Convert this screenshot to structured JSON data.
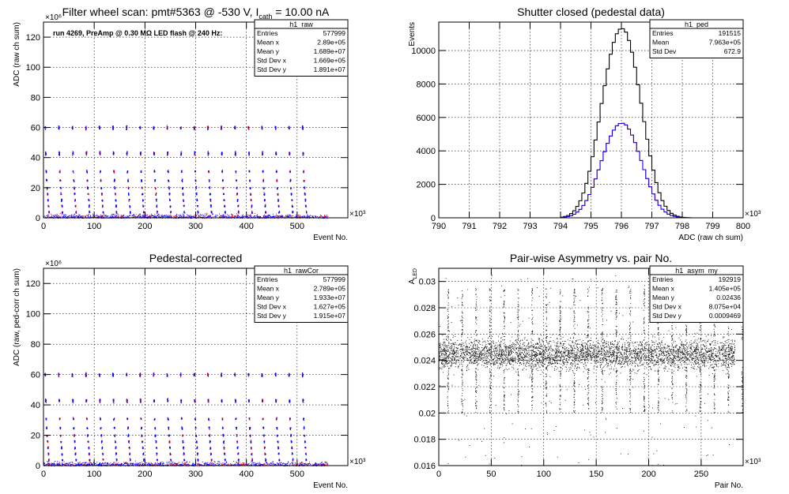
{
  "chart_data": [
    {
      "type": "scatter",
      "title": "Filter wheel scan: pmt#5363 @  -530 V, I",
      "title_sub": "cath",
      "title_tail": " = 10.00 nA",
      "annotation": "run 4269, PreAmp @ 0.30 MΩ LED flash @  240 Hz:",
      "xlabel": "Event No.",
      "ylabel": "ADC (raw ch sum)",
      "x_exponent": "×10³",
      "y_exponent": "×10⁶",
      "xlim": [
        0,
        600
      ],
      "ylim": [
        0,
        130
      ],
      "xticks": [
        0,
        100,
        200,
        300,
        400,
        500
      ],
      "yticks": [
        0,
        20,
        40,
        60,
        80,
        100,
        120
      ],
      "xtick_labels": [
        "0",
        "100",
        "200",
        "300",
        "400",
        "500"
      ],
      "ytick_labels": [
        "0",
        "20",
        "40",
        "60",
        "80",
        "100",
        "120"
      ],
      "grid": true,
      "levels": [
        60,
        43,
        31,
        25,
        20,
        16,
        12,
        8,
        4
      ],
      "period": 26.7,
      "series_colors": [
        "#0000ff",
        "#ff0000"
      ],
      "stats": {
        "name": "h1_raw",
        "rows": [
          {
            "label": "Entries",
            "value": "577999"
          },
          {
            "label": "Mean x",
            "value": "2.89e+05"
          },
          {
            "label": "Mean y",
            "value": "1.689e+07"
          },
          {
            "label": "Std Dev x",
            "value": "1.669e+05"
          },
          {
            "label": "Std Dev y",
            "value": "1.891e+07"
          }
        ]
      }
    },
    {
      "type": "line",
      "title": "Shutter closed (pedestal data)",
      "xlabel": "ADC (raw ch sum)",
      "ylabel": "Events",
      "x_exponent": "×10³",
      "xlim": [
        790,
        800
      ],
      "ylim": [
        0,
        11700
      ],
      "xticks": [
        790,
        791,
        792,
        793,
        794,
        795,
        796,
        797,
        798,
        799,
        800
      ],
      "xtick_labels": [
        "790",
        "791",
        "792",
        "793",
        "794",
        "795",
        "796",
        "797",
        "798",
        "799",
        "800"
      ],
      "yticks": [
        0,
        2000,
        4000,
        6000,
        8000,
        10000
      ],
      "ytick_labels": [
        "0",
        "2000",
        "4000",
        "6000",
        "8000",
        "10000"
      ],
      "grid": true,
      "x": [
        794.0,
        794.1,
        794.2,
        794.3,
        794.4,
        794.5,
        794.6,
        794.7,
        794.8,
        794.9,
        795.0,
        795.1,
        795.2,
        795.3,
        795.4,
        795.5,
        795.6,
        795.7,
        795.8,
        795.9,
        796.0,
        796.1,
        796.2,
        796.3,
        796.4,
        796.5,
        796.6,
        796.7,
        796.8,
        796.9,
        797.0,
        797.1,
        797.2,
        797.3,
        797.4,
        797.5,
        797.6,
        797.7,
        797.8,
        797.9,
        798.0,
        798.1,
        798.2,
        798.3,
        798.4,
        798.5
      ],
      "series": [
        {
          "values": [
            40,
            80,
            140,
            250,
            420,
            680,
            1020,
            1480,
            2060,
            2780,
            3650,
            4650,
            5730,
            6830,
            7900,
            8900,
            9780,
            10490,
            11000,
            11280,
            11300,
            11100,
            10600,
            9900,
            9000,
            7950,
            6850,
            5750,
            4700,
            3700,
            2850,
            2100,
            1500,
            1030,
            690,
            440,
            270,
            160,
            90,
            50,
            25,
            10,
            5,
            0,
            0,
            0
          ],
          "color": "#000000"
        },
        {
          "values": [
            20,
            40,
            70,
            125,
            210,
            340,
            510,
            740,
            1030,
            1390,
            1825,
            2325,
            2865,
            3415,
            3950,
            4450,
            4890,
            5245,
            5500,
            5640,
            5650,
            5550,
            5300,
            4950,
            4500,
            3975,
            3425,
            2875,
            2350,
            1850,
            1425,
            1050,
            750,
            515,
            345,
            220,
            135,
            80,
            45,
            25,
            12,
            5,
            2,
            0,
            0,
            0
          ],
          "color": "#ff0000"
        },
        {
          "values": [
            20,
            40,
            70,
            125,
            210,
            340,
            510,
            740,
            1030,
            1390,
            1825,
            2325,
            2865,
            3415,
            3950,
            4450,
            4890,
            5245,
            5500,
            5640,
            5650,
            5550,
            5300,
            4950,
            4500,
            3975,
            3425,
            2875,
            2350,
            1850,
            1425,
            1050,
            750,
            515,
            345,
            220,
            135,
            80,
            45,
            25,
            12,
            5,
            2,
            0,
            0,
            0
          ],
          "color": "#0000ff"
        }
      ],
      "stats": {
        "name": "h1_ped",
        "rows": [
          {
            "label": "Entries",
            "value": "191515"
          },
          {
            "label": "Mean",
            "value": "7.963e+05"
          },
          {
            "label": "Std Dev",
            "value": "672.9"
          }
        ]
      }
    },
    {
      "type": "scatter",
      "title": "Pedestal-corrected",
      "xlabel": "Event No.",
      "ylabel": "ADC (raw, ped-corr ch sum)",
      "x_exponent": "×10³",
      "y_exponent": "×10⁶",
      "xlim": [
        0,
        600
      ],
      "ylim": [
        0,
        130
      ],
      "xticks": [
        0,
        100,
        200,
        300,
        400,
        500
      ],
      "yticks": [
        0,
        20,
        40,
        60,
        80,
        100,
        120
      ],
      "xtick_labels": [
        "0",
        "100",
        "200",
        "300",
        "400",
        "500"
      ],
      "ytick_labels": [
        "0",
        "20",
        "40",
        "60",
        "80",
        "100",
        "120"
      ],
      "grid": true,
      "levels": [
        60,
        43,
        31,
        25,
        20,
        16,
        12,
        8,
        4
      ],
      "period": 26.7,
      "series_colors": [
        "#0000ff",
        "#ff0000"
      ],
      "stats": {
        "name": "h1_rawCor",
        "rows": [
          {
            "label": "Entries",
            "value": "577999"
          },
          {
            "label": "Mean x",
            "value": "2.789e+05"
          },
          {
            "label": "Mean y",
            "value": "1.933e+07"
          },
          {
            "label": "Std Dev x",
            "value": "1.627e+05"
          },
          {
            "label": "Std Dev y",
            "value": "1.915e+07"
          }
        ]
      }
    },
    {
      "type": "scatter",
      "title": "Pair-wise Asymmetry vs. pair No.",
      "xlabel": "Pair No.",
      "ylabel": "A",
      "ylabel_sub": "LED",
      "x_exponent": "×10³",
      "xlim": [
        0,
        290
      ],
      "ylim": [
        0.016,
        0.031
      ],
      "xticks": [
        0,
        50,
        100,
        150,
        200,
        250
      ],
      "xtick_labels": [
        "0",
        "50",
        "100",
        "150",
        "200",
        "250"
      ],
      "yticks": [
        0.016,
        0.018,
        0.02,
        0.022,
        0.024,
        0.026,
        0.028,
        0.03
      ],
      "ytick_labels": [
        "0.016",
        "0.018",
        "0.02",
        "0.022",
        "0.024",
        "0.026",
        "0.028",
        "0.03"
      ],
      "grid": true,
      "band_center": 0.0245,
      "band_halfwidth": 0.0015,
      "period": 13.35,
      "series_colors": [
        "#000000"
      ],
      "stats": {
        "name": "h1_asym_my",
        "rows": [
          {
            "label": "Entries",
            "value": "192919"
          },
          {
            "label": "Mean x",
            "value": "1.405e+05"
          },
          {
            "label": "Mean y",
            "value": "0.02436"
          },
          {
            "label": "Std Dev x",
            "value": "8.075e+04"
          },
          {
            "label": "Std Dev y",
            "value": "0.0009469"
          }
        ]
      }
    }
  ]
}
